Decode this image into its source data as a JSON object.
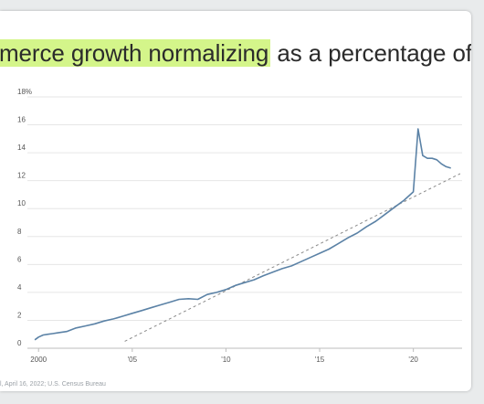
{
  "headline": {
    "highlighted": "merce growth normalizing",
    "rest": " as a percentage of retail sa"
  },
  "source_text": "l, April 16, 2022; U.S. Census Bureau",
  "chart_data": {
    "type": "line",
    "title": "",
    "xlabel": "",
    "ylabel": "",
    "x_tick_labels": [
      "2000",
      "'05",
      "'10",
      "'15",
      "'20"
    ],
    "x_tick_values": [
      2000,
      2005,
      2010,
      2015,
      2020
    ],
    "y_tick_labels": [
      "0",
      "2",
      "4",
      "6",
      "8",
      "10",
      "12",
      "14",
      "16",
      "18%"
    ],
    "y_tick_values": [
      0,
      2,
      4,
      6,
      8,
      10,
      12,
      14,
      16,
      18
    ],
    "xlim": [
      1999.6,
      2022.6
    ],
    "ylim": [
      0,
      18
    ],
    "grid": "horizontal",
    "line_color": "#5b82a6",
    "trend_color": "#8a8a8a",
    "series": [
      {
        "x": [
          1999.8,
          2000.0,
          2000.25,
          2000.5,
          2000.75,
          2001.0,
          2001.5,
          2002.0,
          2002.5,
          2003.0,
          2003.5,
          2004.0,
          2004.5,
          2005.0,
          2005.5,
          2006.0,
          2006.5,
          2007.0,
          2007.5,
          2008.0,
          2008.5,
          2009.0,
          2009.5,
          2010.0,
          2010.5,
          2011.0,
          2011.5,
          2012.0,
          2012.5,
          2013.0,
          2013.5,
          2014.0,
          2014.5,
          2015.0,
          2015.5,
          2016.0,
          2016.5,
          2017.0,
          2017.5,
          2018.0,
          2018.5,
          2019.0,
          2019.5,
          2019.75,
          2020.0,
          2020.25,
          2020.5,
          2020.75,
          2021.0,
          2021.25,
          2021.5,
          2021.75,
          2022.0
        ],
        "values": [
          0.6,
          0.8,
          0.95,
          1.0,
          1.05,
          1.1,
          1.2,
          1.45,
          1.6,
          1.75,
          1.95,
          2.1,
          2.3,
          2.5,
          2.7,
          2.9,
          3.1,
          3.3,
          3.5,
          3.55,
          3.5,
          3.85,
          4.0,
          4.2,
          4.5,
          4.7,
          4.9,
          5.2,
          5.45,
          5.7,
          5.9,
          6.2,
          6.5,
          6.8,
          7.1,
          7.5,
          7.9,
          8.25,
          8.7,
          9.1,
          9.6,
          10.1,
          10.6,
          10.9,
          11.2,
          15.7,
          13.8,
          13.6,
          13.6,
          13.5,
          13.2,
          13.0,
          12.9
        ]
      }
    ],
    "trend": {
      "x": [
        2004.6,
        2022.5
      ],
      "values": [
        0.5,
        12.5
      ]
    }
  }
}
